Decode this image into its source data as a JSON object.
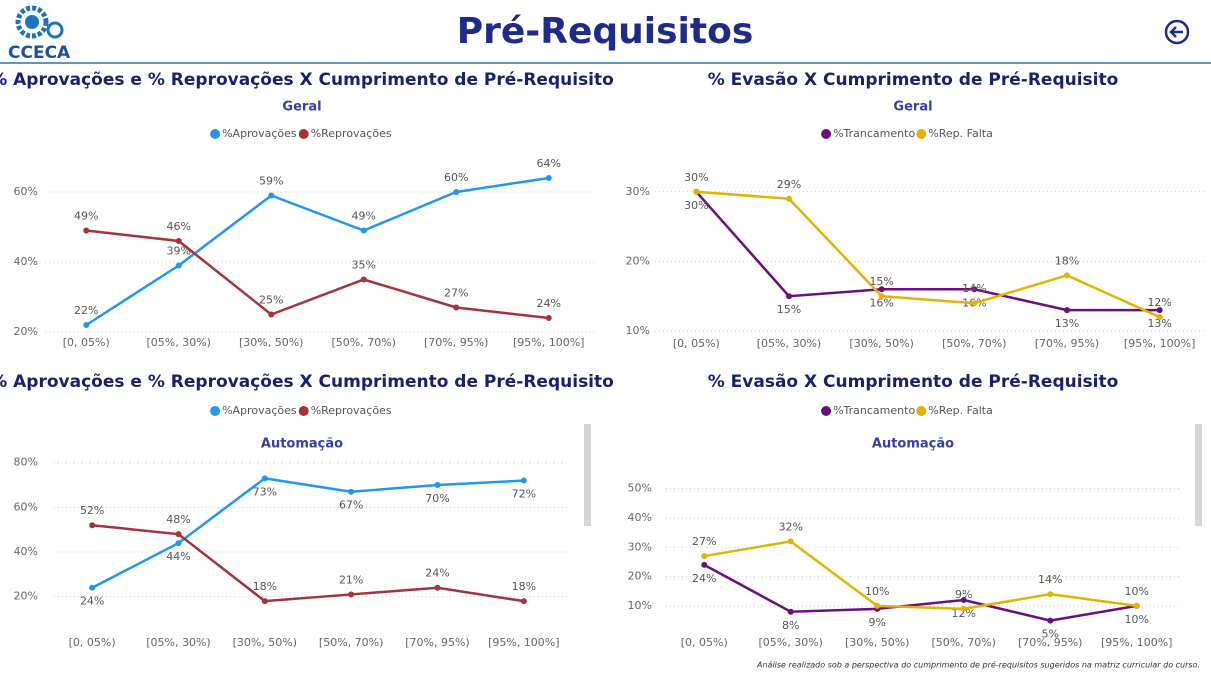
{
  "header": {
    "logo": "CCECA",
    "title": "Pré-Requisitos",
    "footnote": "Análise realizado sob a perspectiva do cumprimento de pré-requisitos sugeridos na matriz curricular do curso."
  },
  "chart_data": [
    {
      "type": "line",
      "title": "% Aprovações e % Reprovações X Cumprimento de Pré-Requisito",
      "subtitle": "Geral",
      "categories": [
        "[0, 05%)",
        "[05%, 30%)",
        "[30%, 50%)",
        "[50%, 70%)",
        "[70%, 95%)",
        "[95%, 100%]"
      ],
      "series": [
        {
          "name": "%Aprovações",
          "color": "#2196f3",
          "values": [
            22,
            39,
            59,
            49,
            60,
            64
          ],
          "value_labels": [
            "22%",
            "39%",
            "59%",
            "49%",
            "60%",
            "64%"
          ]
        },
        {
          "name": "%Reprovações",
          "color": "#a3343a",
          "values": [
            49,
            46,
            25,
            35,
            27,
            24
          ],
          "value_labels": [
            "49%",
            "46%",
            "25%",
            "35%",
            "27%",
            "24%"
          ]
        }
      ],
      "ylim": [
        19,
        70
      ],
      "yticks": [
        {
          "value": 20,
          "label": "20%"
        },
        {
          "value": 40,
          "label": "40%"
        },
        {
          "value": 60,
          "label": "60%"
        }
      ],
      "grid": true
    },
    {
      "type": "line",
      "title": "% Evasão X Cumprimento de Pré-Requisito",
      "subtitle": "Geral",
      "categories": [
        "[0, 05%)",
        "[05%, 30%)",
        "[30%, 50%)",
        "[50%, 70%)",
        "[70%, 95%)",
        "[95%, 100%]"
      ],
      "series": [
        {
          "name": "%Trancamento",
          "color": "#6a0f7e",
          "values": [
            30,
            15,
            16,
            16,
            13,
            13
          ],
          "value_labels": [
            "30%",
            "15%",
            "16%",
            "16%",
            "13%",
            "13%"
          ]
        },
        {
          "name": "%Rep. Falta",
          "color": "#e0b400",
          "values": [
            30,
            29,
            15,
            14,
            18,
            12
          ],
          "value_labels": [
            "30%",
            "29%",
            "15%",
            "14%",
            "18%",
            "12%"
          ]
        }
      ],
      "ylim": [
        9,
        35
      ],
      "yticks": [
        {
          "value": 10,
          "label": "10%"
        },
        {
          "value": 20,
          "label": "20%"
        },
        {
          "value": 30,
          "label": "30%"
        }
      ],
      "grid": true
    },
    {
      "type": "line",
      "title": "% Aprovações e % Reprovações X Cumprimento de Pré-Requisito",
      "subtitle": "Automação",
      "categories": [
        "[0, 05%)",
        "[05%, 30%)",
        "[30%, 50%)",
        "[50%, 70%)",
        "[70%, 95%)",
        "[95%, 100%]"
      ],
      "series": [
        {
          "name": "%Aprovações",
          "color": "#2196f3",
          "values": [
            24,
            44,
            73,
            67,
            70,
            72
          ],
          "value_labels": [
            "24%",
            "44%",
            "73%",
            "67%",
            "70%",
            "72%"
          ]
        },
        {
          "name": "%Reprovações",
          "color": "#a3343a",
          "values": [
            52,
            48,
            18,
            21,
            24,
            18
          ],
          "value_labels": [
            "52%",
            "48%",
            "18%",
            "21%",
            "24%",
            "18%"
          ]
        }
      ],
      "ylim": [
        10,
        83
      ],
      "yticks": [
        {
          "value": 20,
          "label": "20%"
        },
        {
          "value": 40,
          "label": "40%"
        },
        {
          "value": 60,
          "label": "60%"
        },
        {
          "value": 80,
          "label": "80%"
        }
      ],
      "grid": true
    },
    {
      "type": "line",
      "title": "% Evasão X Cumprimento de Pré-Requisito",
      "subtitle": "Automação",
      "categories": [
        "[0, 05%)",
        "[05%, 30%)",
        "[30%, 50%)",
        "[50%, 70%)",
        "[70%, 95%)",
        "[95%, 100%]"
      ],
      "series": [
        {
          "name": "%Trancamento",
          "color": "#6a0f7e",
          "values": [
            24,
            8,
            9,
            12,
            5,
            10
          ],
          "value_labels": [
            "24%",
            "8%",
            "9%",
            "12%",
            "5%",
            "10%"
          ]
        },
        {
          "name": "%Rep. Falta",
          "color": "#e0b400",
          "values": [
            27,
            32,
            10,
            9,
            14,
            10
          ],
          "value_labels": [
            "27%",
            "32%",
            "10%",
            "9%",
            "14%",
            "10%"
          ]
        }
      ],
      "ylim": [
        4,
        55
      ],
      "yticks": [
        {
          "value": 10,
          "label": "10%"
        },
        {
          "value": 20,
          "label": "20%"
        },
        {
          "value": 30,
          "label": "30%"
        },
        {
          "value": 40,
          "label": "40%"
        },
        {
          "value": 50,
          "label": "50%"
        }
      ],
      "grid": true
    }
  ]
}
